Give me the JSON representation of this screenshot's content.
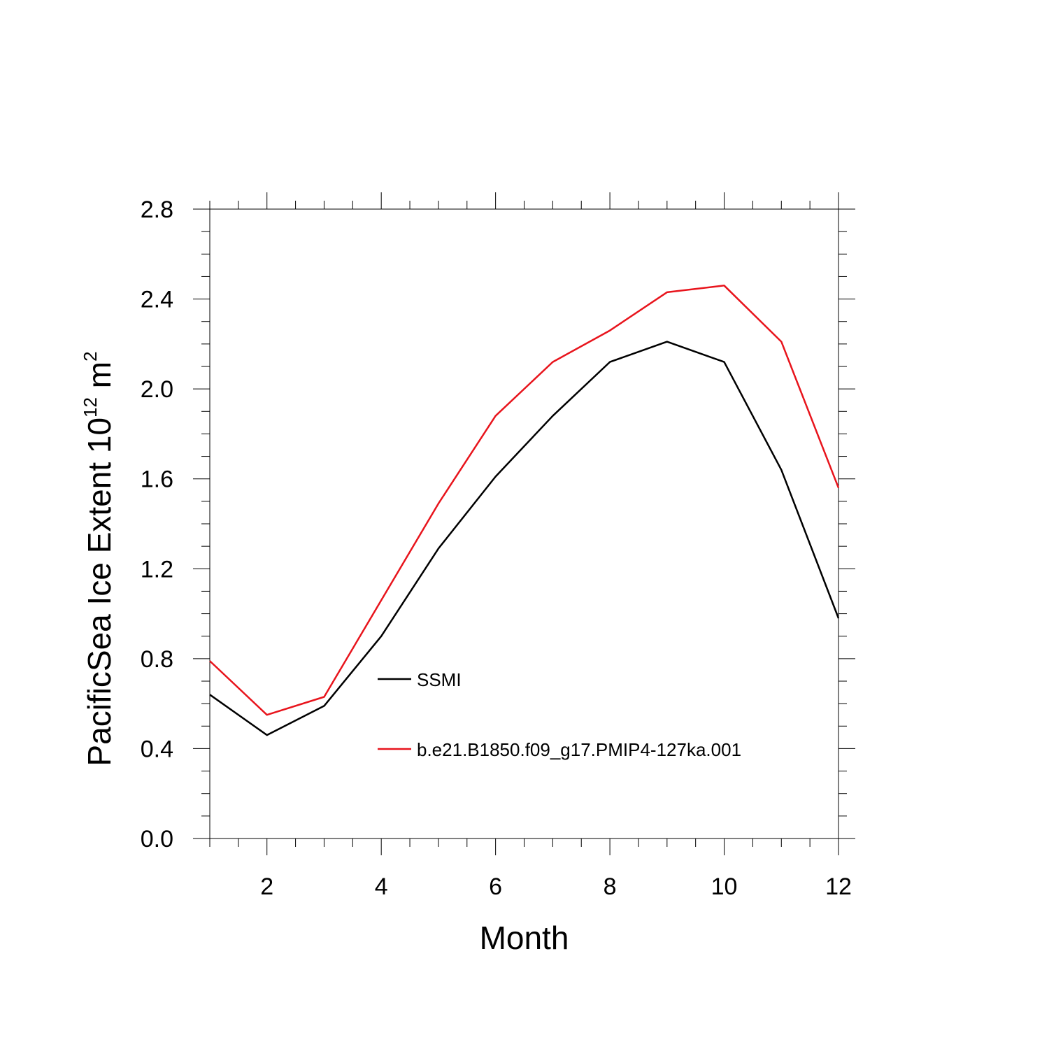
{
  "chart_data": {
    "type": "line",
    "title": "",
    "xlabel": "Month",
    "ylabel": {
      "text": "PacificSea Ice Extent 10",
      "exponent": "12",
      "unit": "m",
      "unit_exponent": "2"
    },
    "xlim": [
      1,
      12
    ],
    "ylim": [
      0.0,
      2.8
    ],
    "x_ticks": [
      2,
      4,
      6,
      8,
      10,
      12
    ],
    "y_ticks": [
      0.0,
      0.4,
      0.8,
      1.2,
      1.6,
      2.0,
      2.4,
      2.8
    ],
    "y_tick_labels": [
      "0.0",
      "0.4",
      "0.8",
      "1.2",
      "1.6",
      "2.0",
      "2.4",
      "2.8"
    ],
    "grid": false,
    "legend_placement": "inside-center",
    "x": [
      1,
      2,
      3,
      4,
      5,
      6,
      7,
      8,
      9,
      10,
      11,
      12
    ],
    "series": [
      {
        "name": "SSMI",
        "color": "#000000",
        "values": [
          0.64,
          0.46,
          0.59,
          0.9,
          1.29,
          1.61,
          1.88,
          2.12,
          2.21,
          2.12,
          1.64,
          0.98
        ]
      },
      {
        "name": "b.e21.B1850.f09_g17.PMIP4-127ka.001",
        "color": "#e8141c",
        "values": [
          0.79,
          0.55,
          0.63,
          1.06,
          1.49,
          1.88,
          2.12,
          2.26,
          2.43,
          2.46,
          2.21,
          1.56
        ]
      }
    ]
  }
}
